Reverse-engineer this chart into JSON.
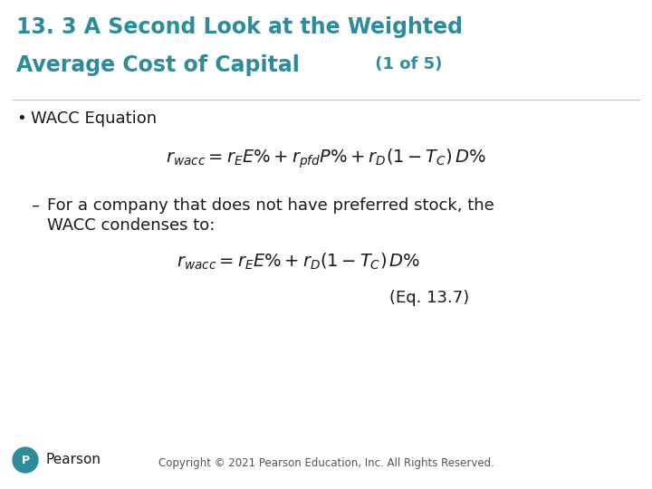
{
  "title_line1": "13. 3 A Second Look at the Weighted",
  "title_line2": "Average Cost of Capital",
  "title_suffix": " (1 of 5)",
  "title_color": "#2E8B9A",
  "background_color": "#FFFFFF",
  "bullet_text": "WACC Equation",
  "eq1": "$r_{wacc} = r_E E\\% + r_{pfd} P\\% + r_D(1 - T_C)\\, D\\%$",
  "dash_text1": "For a company that does not have preferred stock, the",
  "dash_text2": "WACC condenses to:",
  "eq2": "$r_{wacc} = r_E E\\% + r_D(1 - T_C)\\, D\\%$",
  "eq_label": "(Eq. 13.7)",
  "footer": "Copyright © 2021 Pearson Education, Inc. All Rights Reserved.",
  "pearson_text": "Pearson",
  "body_color": "#1a1a1a",
  "eq_color": "#1a1a1a",
  "title_fontsize": 17,
  "title_suffix_fontsize": 13,
  "body_fontsize": 13,
  "eq_fontsize": 14
}
